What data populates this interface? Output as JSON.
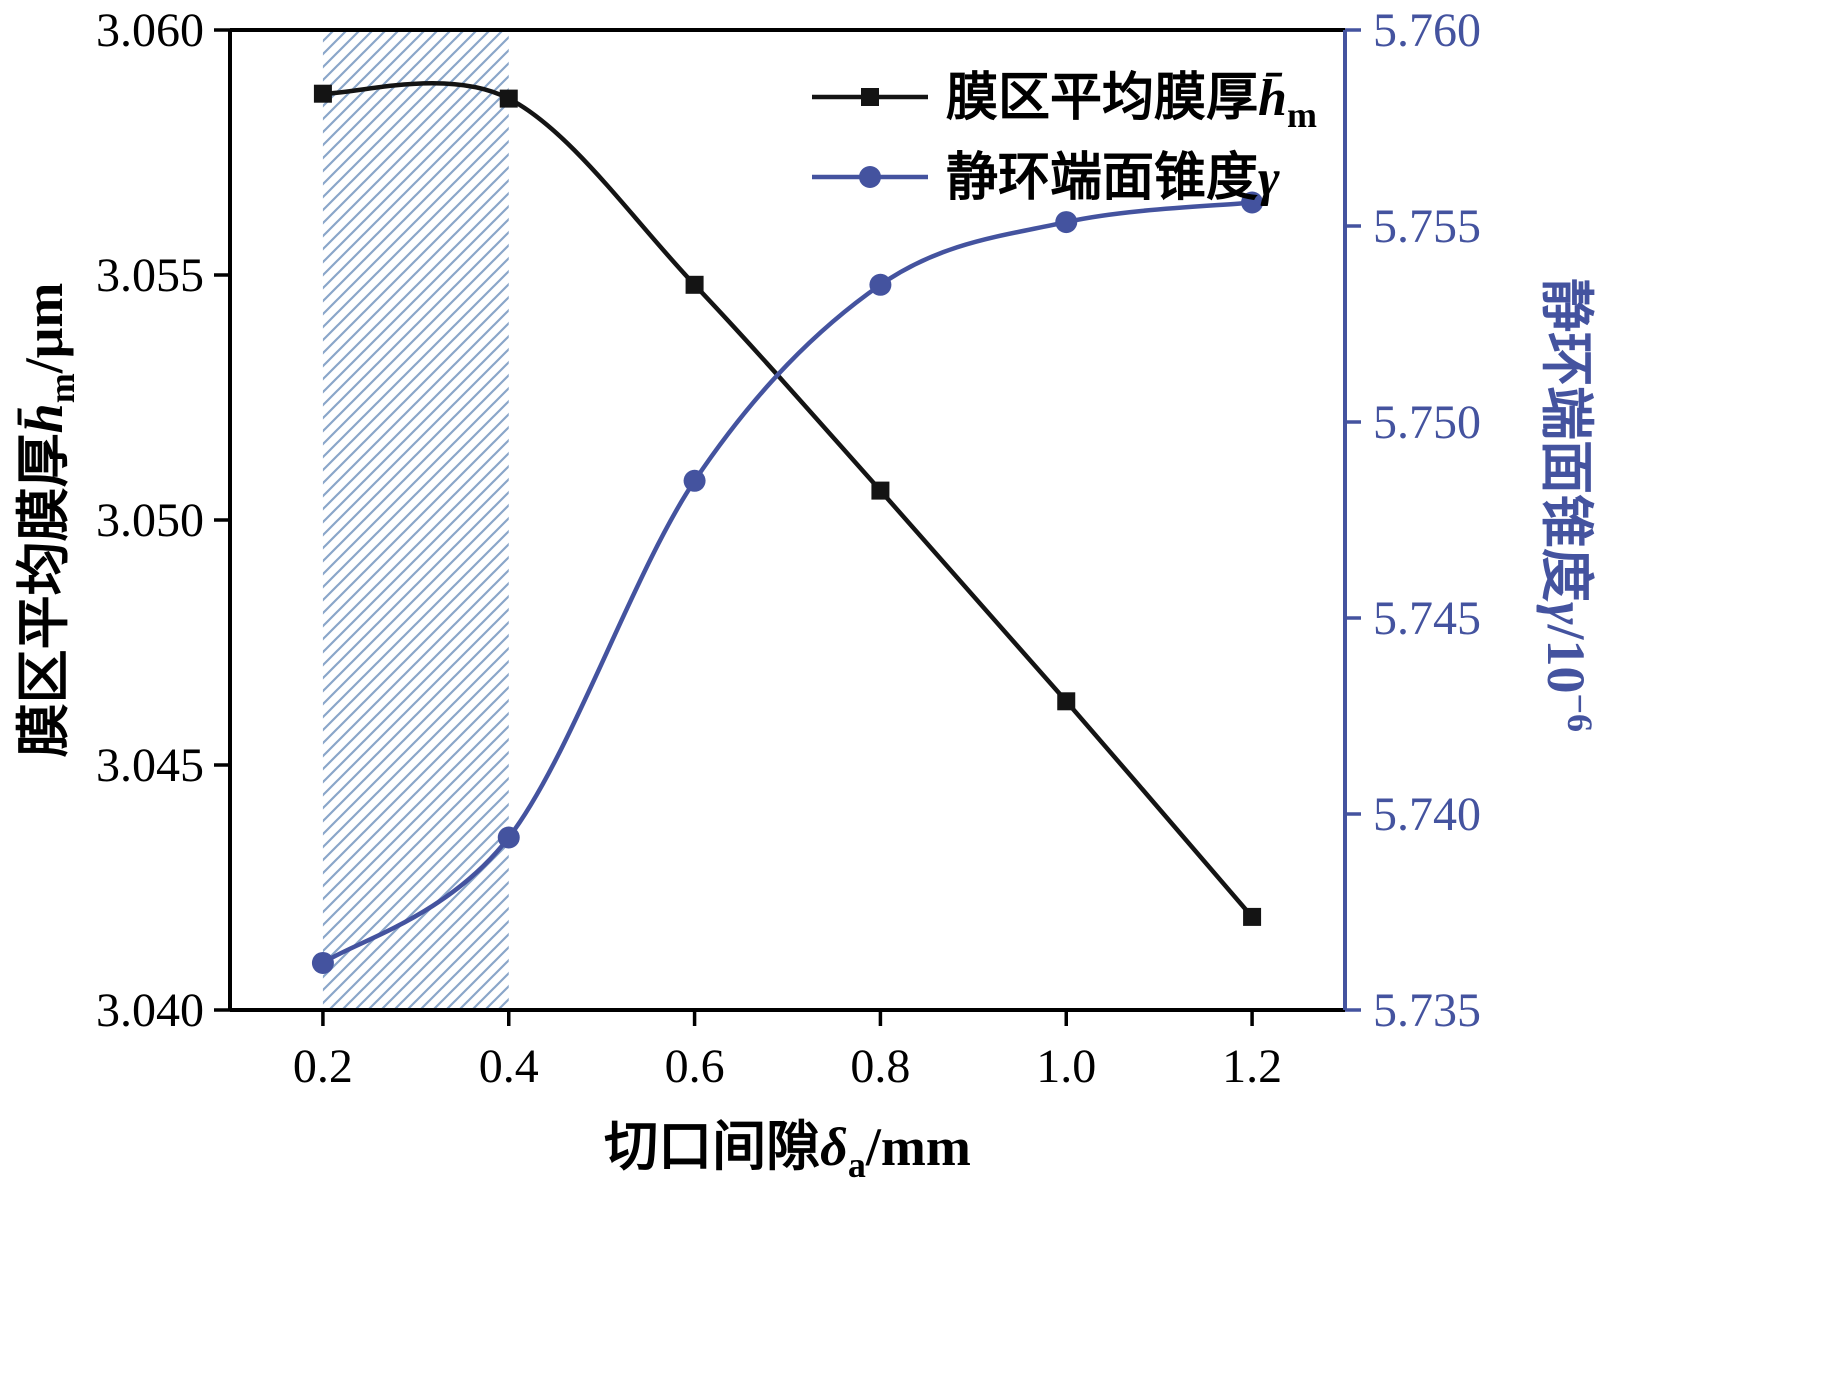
{
  "chart_data": {
    "type": "line",
    "title": "",
    "x": [
      0.2,
      0.4,
      0.6,
      0.8,
      1.0,
      1.2
    ],
    "xlim": [
      0.1,
      1.3
    ],
    "ylim_left": [
      3.04,
      3.06
    ],
    "ylim_right": [
      5.735,
      5.76
    ],
    "xticks": [
      "0.2",
      "0.4",
      "0.6",
      "0.8",
      "1.0",
      "1.2"
    ],
    "yticks_left": [
      "3.040",
      "3.045",
      "3.050",
      "3.055",
      "3.060"
    ],
    "yticks_right": [
      "5.735",
      "5.740",
      "5.745",
      "5.750",
      "5.755",
      "5.760"
    ],
    "xlabel": {
      "text": "切口间隙δa/mm",
      "prefix": "切口间隙",
      "symbol": "δ",
      "sub": "a",
      "suffix": "/mm"
    },
    "ylabel_left": {
      "text": "膜区平均膜厚h̄m/μm",
      "prefix": "膜区平均膜厚",
      "symbol": "h̄",
      "sub": "m",
      "suffix": "/μm"
    },
    "ylabel_right": {
      "text": "静环端面锥度γ/10⁻⁶",
      "prefix": "静环端面锥度",
      "symbol": "γ",
      "sub": "",
      "suffix": "/10",
      "sup": "−6"
    },
    "series": [
      {
        "name": "膜区平均膜厚h̄m",
        "name_prefix": "膜区平均膜厚",
        "name_symbol": "h̄",
        "name_sub": "m",
        "axis": "left",
        "marker": "square",
        "color": "#141414",
        "values": [
          3.0587,
          3.0586,
          3.0548,
          3.0506,
          3.0463,
          3.0419
        ]
      },
      {
        "name": "静环端面锥度γ",
        "name_prefix": "静环端面锥度",
        "name_symbol": "γ",
        "name_sub": "",
        "axis": "right",
        "marker": "circle",
        "color": "#44539f",
        "values": [
          5.7362,
          5.7394,
          5.7485,
          5.7535,
          5.7551,
          5.7556
        ]
      }
    ],
    "hatch_band": {
      "x0": 0.2,
      "x1": 0.4,
      "color": "#8aa6c9"
    },
    "colors": {
      "left_axis": "#000000",
      "right_axis": "#44539f",
      "background": "#ffffff"
    },
    "legend_position": "top-right-inside",
    "grid": "off"
  }
}
